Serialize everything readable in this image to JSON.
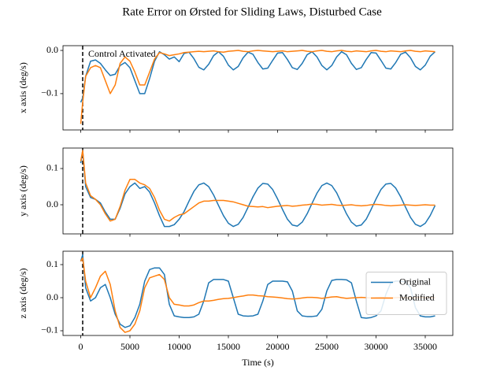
{
  "title": "Rate Error on Ørsted for Sliding Laws, Disturbed Case",
  "chart_data": [
    {
      "type": "line",
      "ylabel": "x axis (deg/s)",
      "annotation": "Control Activated",
      "vline": 200,
      "x": [
        0,
        200,
        500,
        1000,
        1500,
        2000,
        2500,
        3000,
        3500,
        4000,
        4500,
        5000,
        5500,
        6000,
        6500,
        7000,
        7500,
        8000,
        8500,
        9000,
        9500,
        10000,
        10500,
        11000,
        11500,
        12000,
        12500,
        13000,
        13500,
        14000,
        14500,
        15000,
        15500,
        16000,
        16500,
        17000,
        17500,
        18000,
        18500,
        19000,
        19500,
        20000,
        20500,
        21000,
        21500,
        22000,
        22500,
        23000,
        23500,
        24000,
        24500,
        25000,
        25500,
        26000,
        26500,
        27000,
        27500,
        28000,
        28500,
        29000,
        29500,
        30000,
        30500,
        31000,
        31500,
        32000,
        32500,
        33000,
        33500,
        34000,
        34500,
        35000,
        35500,
        36000
      ],
      "series": [
        {
          "color": "#1f77b4",
          "values": [
            -0.12,
            -0.11,
            -0.06,
            -0.025,
            -0.022,
            -0.03,
            -0.045,
            -0.058,
            -0.055,
            -0.035,
            -0.028,
            -0.04,
            -0.07,
            -0.1,
            -0.1,
            -0.065,
            -0.025,
            -0.003,
            -0.01,
            -0.02,
            -0.015,
            -0.026,
            -0.007,
            -0.004,
            -0.019,
            -0.039,
            -0.045,
            -0.032,
            -0.012,
            -0.003,
            -0.0135,
            -0.034,
            -0.045,
            -0.037,
            -0.017,
            -0.004,
            -0.009,
            -0.028,
            -0.043,
            -0.041,
            -0.023,
            -0.006,
            -0.005,
            -0.021,
            -0.04,
            -0.044,
            -0.03,
            -0.01,
            -0.003,
            -0.015,
            -0.035,
            -0.045,
            -0.035,
            -0.015,
            -0.003,
            -0.01,
            -0.03,
            -0.044,
            -0.04,
            -0.021,
            -0.005,
            -0.006,
            -0.023,
            -0.041,
            -0.043,
            -0.028,
            -0.009,
            -0.004,
            -0.017,
            -0.037,
            -0.045,
            -0.034,
            -0.0135,
            -0.003
          ]
        },
        {
          "color": "#ff7f0e",
          "values": [
            -0.17,
            -0.12,
            -0.06,
            -0.04,
            -0.035,
            -0.04,
            -0.07,
            -0.1,
            -0.08,
            -0.03,
            -0.015,
            -0.025,
            -0.05,
            -0.08,
            -0.08,
            -0.05,
            -0.02,
            -0.005,
            -0.008,
            -0.012,
            -0.01,
            -0.008,
            -0.005,
            -0.004,
            -0.003,
            -0.002,
            -0.003,
            -0.002,
            -0.001,
            -0.003,
            -0.004,
            -0.002,
            -0.001,
            0.0,
            -0.002,
            -0.003,
            -0.001,
            0.0,
            -0.001,
            -0.002,
            -0.003,
            -0.002,
            -0.001,
            -0.003,
            -0.002,
            -0.001,
            0.0,
            -0.002,
            -0.003,
            -0.001,
            0.0,
            -0.002,
            -0.003,
            -0.001,
            0.0,
            -0.002,
            -0.003,
            -0.001,
            -0.002,
            -0.003,
            -0.001,
            0.0,
            -0.002,
            -0.003,
            -0.001,
            -0.002,
            -0.003,
            -0.001,
            0.0,
            -0.002,
            -0.003,
            -0.001,
            -0.002,
            -0.003
          ]
        }
      ],
      "xlim": [
        -1800,
        37800
      ],
      "xticks": [
        0,
        5000,
        10000,
        15000,
        20000,
        25000,
        30000,
        35000
      ],
      "ylim": [
        -0.184,
        0.011
      ],
      "yticks": [
        {
          "value": -0.1,
          "label": "−0.1"
        },
        {
          "value": 0,
          "label": "0.0"
        }
      ]
    },
    {
      "type": "line",
      "ylabel": "y axis (deg/s)",
      "vline": 200,
      "x": [
        0,
        200,
        500,
        1000,
        1500,
        2000,
        2500,
        3000,
        3500,
        4000,
        4500,
        5000,
        5500,
        6000,
        6500,
        7000,
        7500,
        8000,
        8500,
        9000,
        9500,
        10000,
        10500,
        11000,
        11500,
        12000,
        12500,
        13000,
        13500,
        14000,
        14500,
        15000,
        15500,
        16000,
        16500,
        17000,
        17500,
        18000,
        18500,
        19000,
        19500,
        20000,
        20500,
        21000,
        21500,
        22000,
        22500,
        23000,
        23500,
        24000,
        24500,
        25000,
        25500,
        26000,
        26500,
        27000,
        27500,
        28000,
        28500,
        29000,
        29500,
        30000,
        30500,
        31000,
        31500,
        32000,
        32500,
        33000,
        33500,
        34000,
        34500,
        35000,
        35500,
        36000
      ],
      "series": [
        {
          "color": "#1f77b4",
          "values": [
            0.115,
            0.15,
            0.05,
            0.02,
            0.015,
            0.005,
            -0.02,
            -0.04,
            -0.04,
            -0.01,
            0.03,
            0.05,
            0.06,
            0.045,
            0.05,
            0.035,
            0.005,
            -0.03,
            -0.06,
            -0.06,
            -0.055,
            -0.04,
            -0.019,
            0.01,
            0.037,
            0.055,
            0.06,
            0.05,
            0.027,
            -0.002,
            -0.03,
            -0.051,
            -0.06,
            -0.054,
            -0.035,
            -0.007,
            0.022,
            0.046,
            0.059,
            0.057,
            0.042,
            0.016,
            -0.013,
            -0.04,
            -0.056,
            -0.059,
            -0.048,
            -0.025,
            0.004,
            0.032,
            0.053,
            0.06,
            0.053,
            0.033,
            0.004,
            -0.025,
            -0.048,
            -0.059,
            -0.056,
            -0.04,
            -0.013,
            0.016,
            0.042,
            0.057,
            0.059,
            0.046,
            0.022,
            -0.007,
            -0.035,
            -0.054,
            -0.06,
            -0.051,
            -0.03,
            -0.002
          ]
        },
        {
          "color": "#ff7f0e",
          "values": [
            0.12,
            0.15,
            0.06,
            0.025,
            0.015,
            0.0,
            -0.025,
            -0.045,
            -0.04,
            -0.005,
            0.04,
            0.07,
            0.07,
            0.06,
            0.055,
            0.045,
            0.02,
            -0.015,
            -0.04,
            -0.045,
            -0.035,
            -0.028,
            -0.025,
            -0.015,
            -0.005,
            0.005,
            0.01,
            0.01,
            0.012,
            0.012,
            0.012,
            0.01,
            0.008,
            0.004,
            0.0,
            -0.004,
            -0.005,
            -0.006,
            -0.005,
            -0.008,
            -0.006,
            -0.004,
            -0.003,
            -0.002,
            -0.004,
            -0.003,
            -0.001,
            0.0,
            0.002,
            0.001,
            -0.001,
            0.0,
            0.001,
            -0.001,
            -0.002,
            -0.001,
            0.0,
            -0.002,
            -0.003,
            -0.002,
            0.0,
            0.001,
            0.0,
            -0.002,
            -0.003,
            -0.002,
            -0.001,
            0.0,
            -0.001,
            -0.002,
            -0.001,
            0.0,
            -0.001,
            -0.001
          ]
        }
      ],
      "xlim": [
        -1800,
        37800
      ],
      "xticks": [
        0,
        5000,
        10000,
        15000,
        20000,
        25000,
        30000,
        35000
      ],
      "ylim": [
        -0.0804,
        0.1565
      ],
      "yticks": [
        {
          "value": 0,
          "label": "0.0"
        },
        0.1
      ]
    },
    {
      "type": "line",
      "ylabel": "z axis (deg/s)",
      "xlabel": "Time (s)",
      "vline": 200,
      "legend": "center right",
      "x": [
        0,
        200,
        500,
        1000,
        1500,
        2000,
        2500,
        3000,
        3500,
        4000,
        4500,
        5000,
        5500,
        6000,
        6500,
        7000,
        7500,
        8000,
        8500,
        9000,
        9500,
        10000,
        10500,
        11000,
        11500,
        12000,
        12500,
        13000,
        13500,
        14000,
        14500,
        15000,
        15500,
        16000,
        16500,
        17000,
        17500,
        18000,
        18500,
        19000,
        19500,
        20000,
        20500,
        21000,
        21500,
        22000,
        22500,
        23000,
        23500,
        24000,
        24500,
        25000,
        25500,
        26000,
        26500,
        27000,
        27500,
        28000,
        28500,
        29000,
        29500,
        30000,
        30500,
        31000,
        31500,
        32000,
        32500,
        33000,
        33500,
        34000,
        34500,
        35000,
        35500,
        36000
      ],
      "series": [
        {
          "name": "Original",
          "color": "#1f77b4",
          "values": [
            0.11,
            0.13,
            0.03,
            -0.01,
            0.0,
            0.03,
            0.04,
            0.0,
            -0.05,
            -0.08,
            -0.09,
            -0.085,
            -0.06,
            -0.02,
            0.05,
            0.085,
            0.09,
            0.09,
            0.07,
            -0.02,
            -0.055,
            -0.058,
            -0.06,
            -0.06,
            -0.058,
            -0.05,
            -0.01,
            0.045,
            0.055,
            0.055,
            0.055,
            0.05,
            0.0,
            -0.05,
            -0.055,
            -0.056,
            -0.055,
            -0.05,
            -0.01,
            0.04,
            0.05,
            0.05,
            0.05,
            0.048,
            0.02,
            -0.04,
            -0.055,
            -0.057,
            -0.057,
            -0.055,
            -0.035,
            0.02,
            0.052,
            0.055,
            0.055,
            0.054,
            0.045,
            -0.01,
            -0.06,
            -0.062,
            -0.06,
            -0.055,
            -0.04,
            0.01,
            0.045,
            0.05,
            0.05,
            0.048,
            0.03,
            -0.03,
            -0.055,
            -0.058,
            -0.058,
            -0.055
          ]
        },
        {
          "name": "Modified",
          "color": "#ff7f0e",
          "values": [
            0.11,
            0.12,
            0.05,
            0.0,
            0.03,
            0.065,
            0.08,
            0.04,
            -0.04,
            -0.09,
            -0.105,
            -0.1,
            -0.08,
            -0.04,
            0.03,
            0.06,
            0.065,
            0.07,
            0.055,
            0.0,
            -0.02,
            -0.022,
            -0.025,
            -0.025,
            -0.022,
            -0.015,
            -0.01,
            -0.01,
            -0.008,
            -0.005,
            -0.003,
            -0.002,
            0.0,
            0.003,
            0.005,
            0.008,
            0.008,
            0.006,
            0.005,
            0.003,
            0.002,
            0.001,
            -0.001,
            -0.003,
            -0.004,
            -0.003,
            -0.001,
            0.001,
            0.001,
            0.0,
            -0.002,
            0.0,
            0.002,
            0.003,
            0.0,
            -0.002,
            -0.001,
            0.0,
            0.001,
            0.0,
            -0.001,
            0.0,
            0.001,
            0.0,
            -0.001,
            0.0,
            0.001,
            0.0,
            -0.001,
            0.0,
            0.001,
            0.0,
            0.0,
            0.0
          ]
        }
      ],
      "xlim": [
        -1800,
        37800
      ],
      "xticks": [
        0,
        5000,
        10000,
        15000,
        20000,
        25000,
        30000,
        35000
      ],
      "ylim": [
        -0.1143,
        0.1405
      ],
      "yticks": [
        {
          "value": -0.1,
          "label": "−0.1"
        },
        {
          "value": 0,
          "label": "0.0"
        },
        0.1
      ]
    }
  ]
}
